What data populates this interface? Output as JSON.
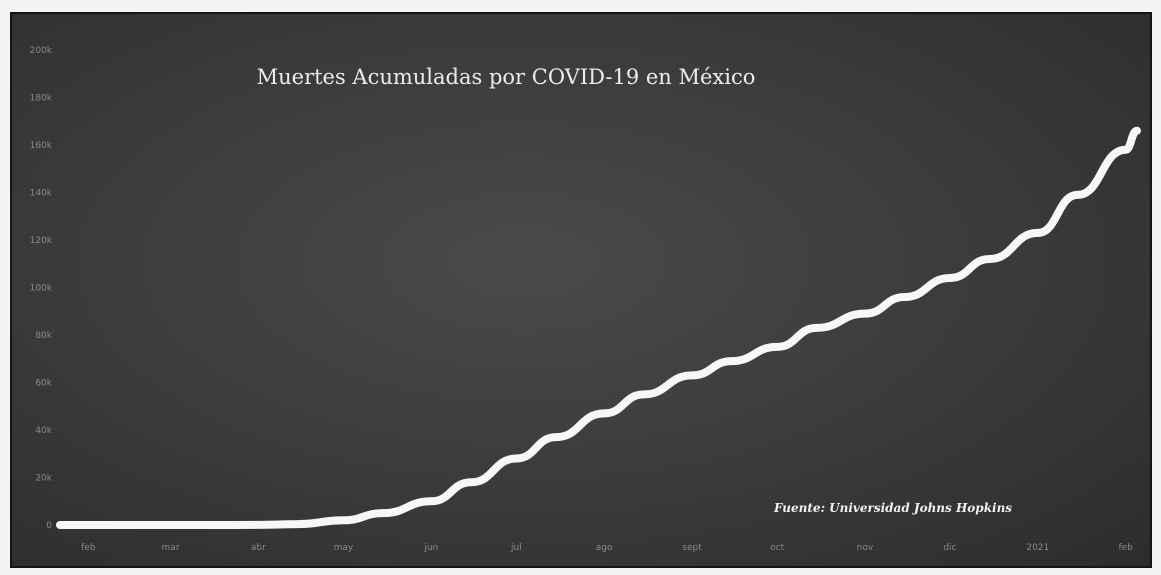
{
  "chart_data": {
    "type": "line",
    "title": "Muertes Acumuladas por COVID-19 en México",
    "annotation": "Fuente: Universidad Johns Hopkins",
    "xlabel": "",
    "ylabel": "",
    "x_tick_labels": [
      "feb",
      "mar",
      "abr",
      "may",
      "jun",
      "jul",
      "ago",
      "sept",
      "oct",
      "nov",
      "dic",
      "2021",
      "feb"
    ],
    "y_tick_labels": [
      "0",
      "20k",
      "40k",
      "60k",
      "80k",
      "100k",
      "120k",
      "140k",
      "160k",
      "180k",
      "200k"
    ],
    "ylim": [
      0,
      200000
    ],
    "xlim": [
      "2020-01-22",
      "2021-02-05"
    ],
    "grid": false,
    "line_color": "#f7f7f7",
    "background_color": "#3a3a3a",
    "series": [
      {
        "x": [
          "2020-01-22",
          "2020-02-15",
          "2020-03-15",
          "2020-04-01",
          "2020-04-15",
          "2020-05-01",
          "2020-05-15",
          "2020-06-01",
          "2020-06-15",
          "2020-07-01",
          "2020-07-15",
          "2020-08-01",
          "2020-08-15",
          "2020-09-01",
          "2020-09-15",
          "2020-10-01",
          "2020-10-15",
          "2020-11-01",
          "2020-11-15",
          "2020-12-01",
          "2020-12-15",
          "2021-01-01",
          "2021-01-15",
          "2021-02-01",
          "2021-02-05"
        ],
        "y": [
          0,
          0,
          0,
          50,
          400,
          2000,
          5000,
          10000,
          18000,
          28000,
          37000,
          47000,
          55000,
          63000,
          69000,
          75000,
          83000,
          89000,
          96000,
          104000,
          112000,
          123000,
          139000,
          158000,
          166000
        ]
      }
    ]
  }
}
